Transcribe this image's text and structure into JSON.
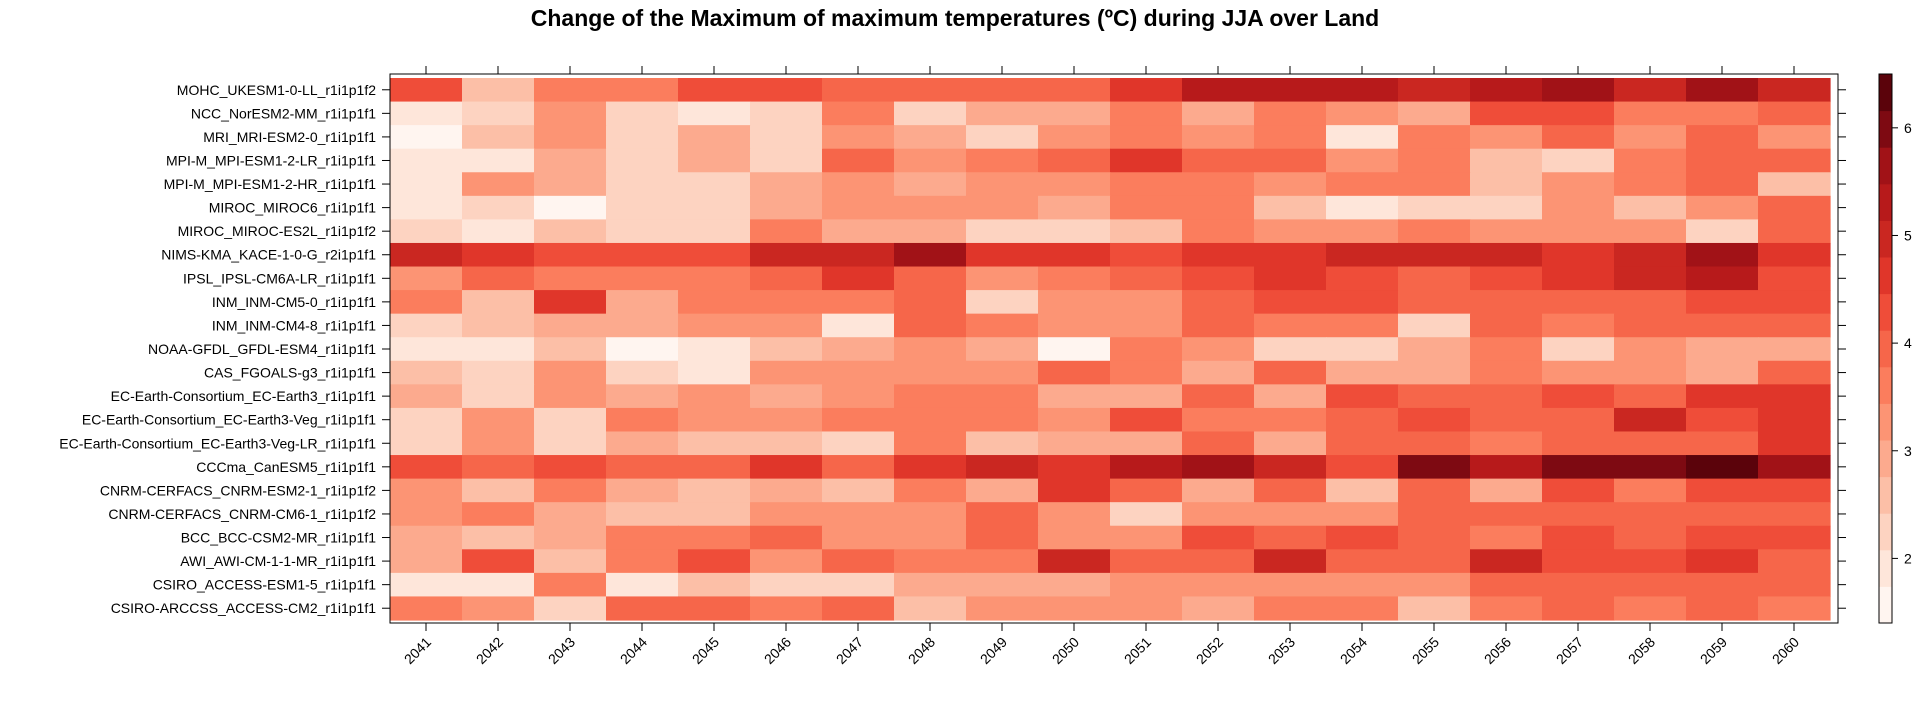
{
  "chart_data": {
    "type": "heatmap",
    "title": "Change of the Maximum of maximum temperatures (ºC) during JJA over Land",
    "xlabel": "",
    "ylabel": "",
    "x": [
      "2041",
      "2042",
      "2043",
      "2044",
      "2045",
      "2046",
      "2047",
      "2048",
      "2049",
      "2050",
      "2051",
      "2052",
      "2053",
      "2054",
      "2055",
      "2056",
      "2057",
      "2058",
      "2059",
      "2060"
    ],
    "y": [
      "MOHC_UKESM1-0-LL_r1i1p1f2",
      "NCC_NorESM2-MM_r1i1p1f1",
      "MRI_MRI-ESM2-0_r1i1p1f1",
      "MPI-M_MPI-ESM1-2-LR_r1i1p1f1",
      "MPI-M_MPI-ESM1-2-HR_r1i1p1f1",
      "MIROC_MIROC6_r1i1p1f1",
      "MIROC_MIROC-ES2L_r1i1p1f2",
      "NIMS-KMA_KACE-1-0-G_r2i1p1f1",
      "IPSL_IPSL-CM6A-LR_r1i1p1f1",
      "INM_INM-CM5-0_r1i1p1f1",
      "INM_INM-CM4-8_r1i1p1f1",
      "NOAA-GFDL_GFDL-ESM4_r1i1p1f1",
      "CAS_FGOALS-g3_r1i1p1f1",
      "EC-Earth-Consortium_EC-Earth3_r1i1p1f1",
      "EC-Earth-Consortium_EC-Earth3-Veg_r1i1p1f1",
      "EC-Earth-Consortium_EC-Earth3-Veg-LR_r1i1p1f1",
      "CCCma_CanESM5_r1i1p1f1",
      "CNRM-CERFACS_CNRM-ESM2-1_r1i1p1f2",
      "CNRM-CERFACS_CNRM-CM6-1_r1i1p1f2",
      "BCC_BCC-CSM2-MR_r1i1p1f1",
      "AWI_AWI-CM-1-1-MR_r1i1p1f1",
      "CSIRO_ACCESS-ESM1-5_r1i1p1f1",
      "CSIRO-ARCCSS_ACCESS-CM2_r1i1p1f1"
    ],
    "values": [
      [
        4.3,
        2.7,
        3.6,
        3.6,
        4.2,
        4.2,
        3.9,
        3.9,
        4.0,
        4.0,
        4.5,
        5.3,
        5.3,
        5.3,
        4.9,
        5.3,
        5.5,
        4.9,
        5.8,
        5.1
      ],
      [
        2.0,
        2.4,
        3.2,
        2.4,
        2.0,
        2.4,
        3.6,
        2.4,
        2.9,
        2.9,
        3.7,
        2.9,
        3.7,
        3.2,
        3.0,
        4.2,
        4.2,
        3.7,
        3.7,
        4.0
      ],
      [
        1.6,
        2.7,
        3.2,
        2.1,
        2.9,
        2.1,
        3.1,
        2.9,
        2.4,
        3.2,
        3.7,
        3.1,
        3.6,
        1.8,
        3.6,
        3.3,
        3.8,
        3.3,
        3.8,
        3.2
      ],
      [
        1.8,
        1.8,
        2.8,
        2.1,
        3.0,
        2.4,
        3.9,
        3.3,
        3.6,
        3.9,
        4.6,
        3.9,
        4.1,
        3.1,
        3.5,
        2.6,
        2.1,
        3.6,
        3.9,
        3.9
      ],
      [
        1.9,
        3.2,
        2.8,
        2.1,
        2.1,
        2.8,
        3.2,
        2.8,
        3.3,
        3.3,
        3.6,
        3.6,
        3.3,
        3.6,
        3.6,
        2.6,
        3.2,
        3.6,
        3.9,
        2.5
      ],
      [
        1.8,
        2.3,
        1.7,
        2.1,
        2.1,
        2.8,
        3.3,
        3.3,
        3.3,
        2.8,
        3.5,
        3.5,
        2.6,
        1.9,
        2.3,
        2.3,
        3.4,
        2.6,
        3.4,
        3.8
      ],
      [
        2.4,
        2.0,
        2.6,
        2.4,
        2.1,
        3.6,
        2.8,
        2.8,
        2.3,
        2.3,
        2.7,
        3.6,
        3.3,
        3.3,
        3.6,
        3.3,
        3.3,
        3.3,
        2.3,
        4.1
      ],
      [
        4.8,
        4.5,
        4.2,
        4.2,
        4.2,
        4.8,
        4.8,
        5.6,
        4.5,
        4.6,
        4.3,
        4.6,
        4.7,
        4.9,
        5.0,
        5.0,
        4.5,
        4.8,
        5.5,
        4.6
      ],
      [
        3.2,
        4.1,
        3.7,
        3.5,
        3.6,
        4.0,
        4.6,
        3.9,
        3.1,
        3.5,
        3.8,
        4.3,
        4.5,
        4.3,
        3.9,
        4.3,
        4.6,
        4.8,
        5.2,
        4.3
      ],
      [
        3.5,
        2.7,
        4.5,
        2.8,
        3.6,
        3.6,
        3.6,
        4.0,
        2.4,
        3.1,
        3.1,
        4.0,
        4.3,
        4.3,
        3.9,
        3.8,
        3.8,
        4.0,
        4.3,
        4.3
      ],
      [
        2.3,
        2.5,
        2.8,
        2.8,
        3.1,
        3.1,
        2.0,
        4.0,
        3.6,
        3.1,
        3.1,
        4.0,
        3.6,
        3.6,
        2.4,
        3.9,
        3.6,
        4.0,
        3.8,
        4.0
      ],
      [
        1.9,
        1.9,
        2.6,
        1.6,
        1.9,
        2.5,
        2.9,
        3.3,
        2.9,
        1.7,
        3.6,
        3.2,
        2.4,
        2.1,
        3.0,
        3.6,
        2.4,
        3.2,
        2.8,
        2.8
      ],
      [
        2.5,
        2.1,
        3.2,
        2.4,
        2.0,
        3.1,
        3.1,
        3.1,
        3.1,
        4.0,
        3.6,
        2.8,
        3.9,
        2.9,
        2.9,
        3.5,
        3.1,
        3.3,
        2.9,
        4.1
      ],
      [
        2.8,
        2.1,
        3.3,
        2.9,
        3.3,
        2.8,
        3.3,
        3.6,
        3.6,
        2.8,
        2.8,
        4.0,
        2.8,
        4.3,
        3.8,
        4.1,
        4.3,
        4.1,
        4.6,
        4.6
      ],
      [
        2.4,
        3.2,
        2.1,
        3.6,
        3.2,
        3.2,
        3.6,
        3.6,
        3.6,
        3.2,
        4.3,
        3.5,
        3.5,
        4.0,
        4.3,
        4.1,
        4.1,
        4.9,
        4.3,
        4.6
      ],
      [
        2.1,
        3.2,
        2.1,
        3.0,
        2.6,
        2.6,
        2.1,
        3.6,
        2.5,
        2.8,
        2.8,
        4.0,
        2.9,
        4.0,
        4.0,
        3.5,
        4.0,
        4.0,
        4.0,
        4.6
      ],
      [
        4.3,
        4.0,
        4.4,
        4.1,
        4.1,
        4.6,
        4.0,
        4.6,
        4.8,
        4.6,
        5.3,
        5.5,
        4.9,
        4.3,
        5.9,
        5.4,
        5.9,
        5.9,
        6.3,
        5.8
      ],
      [
        3.1,
        2.6,
        3.6,
        3.0,
        2.6,
        3.0,
        2.6,
        3.6,
        3.0,
        4.6,
        4.0,
        3.0,
        4.0,
        2.6,
        4.0,
        2.8,
        4.3,
        3.6,
        4.3,
        4.3
      ],
      [
        3.2,
        3.6,
        2.8,
        2.6,
        2.6,
        3.1,
        3.4,
        3.1,
        3.9,
        3.1,
        2.4,
        3.4,
        3.4,
        3.4,
        4.0,
        4.0,
        4.0,
        4.0,
        4.0,
        4.0
      ],
      [
        2.8,
        2.5,
        2.8,
        3.5,
        3.5,
        3.9,
        3.2,
        3.2,
        4.0,
        3.2,
        3.2,
        4.3,
        3.9,
        4.4,
        4.0,
        3.6,
        4.3,
        4.0,
        4.3,
        4.3
      ],
      [
        2.8,
        4.4,
        2.6,
        3.5,
        4.2,
        3.4,
        4.0,
        3.6,
        3.6,
        4.8,
        4.0,
        4.0,
        4.8,
        4.0,
        4.0,
        5.0,
        4.3,
        4.3,
        4.7,
        4.0
      ],
      [
        1.9,
        2.0,
        3.5,
        1.9,
        2.5,
        2.4,
        2.4,
        3.0,
        3.0,
        2.8,
        3.3,
        3.3,
        3.3,
        3.3,
        3.3,
        3.8,
        3.8,
        3.8,
        3.8,
        3.8
      ],
      [
        3.5,
        3.3,
        2.4,
        4.0,
        4.0,
        3.6,
        3.9,
        2.7,
        3.1,
        3.3,
        3.1,
        2.8,
        3.6,
        3.6,
        2.5,
        3.6,
        3.8,
        3.6,
        3.8,
        3.6
      ]
    ],
    "colorbar": {
      "ticks": [
        2,
        3,
        4,
        5,
        6
      ],
      "min": 1.4,
      "max": 6.5,
      "palette": [
        "#FFF5F0",
        "#FEE6DA",
        "#FDD3C1",
        "#FCBFA7",
        "#FCAA8E",
        "#FC9474",
        "#FB7D5D",
        "#F6664A",
        "#EF4D39",
        "#E0362A",
        "#CA2721",
        "#B71A1B",
        "#A11217",
        "#7E0A12",
        "#5B030B"
      ]
    },
    "legend_position": "right",
    "grid": false
  }
}
